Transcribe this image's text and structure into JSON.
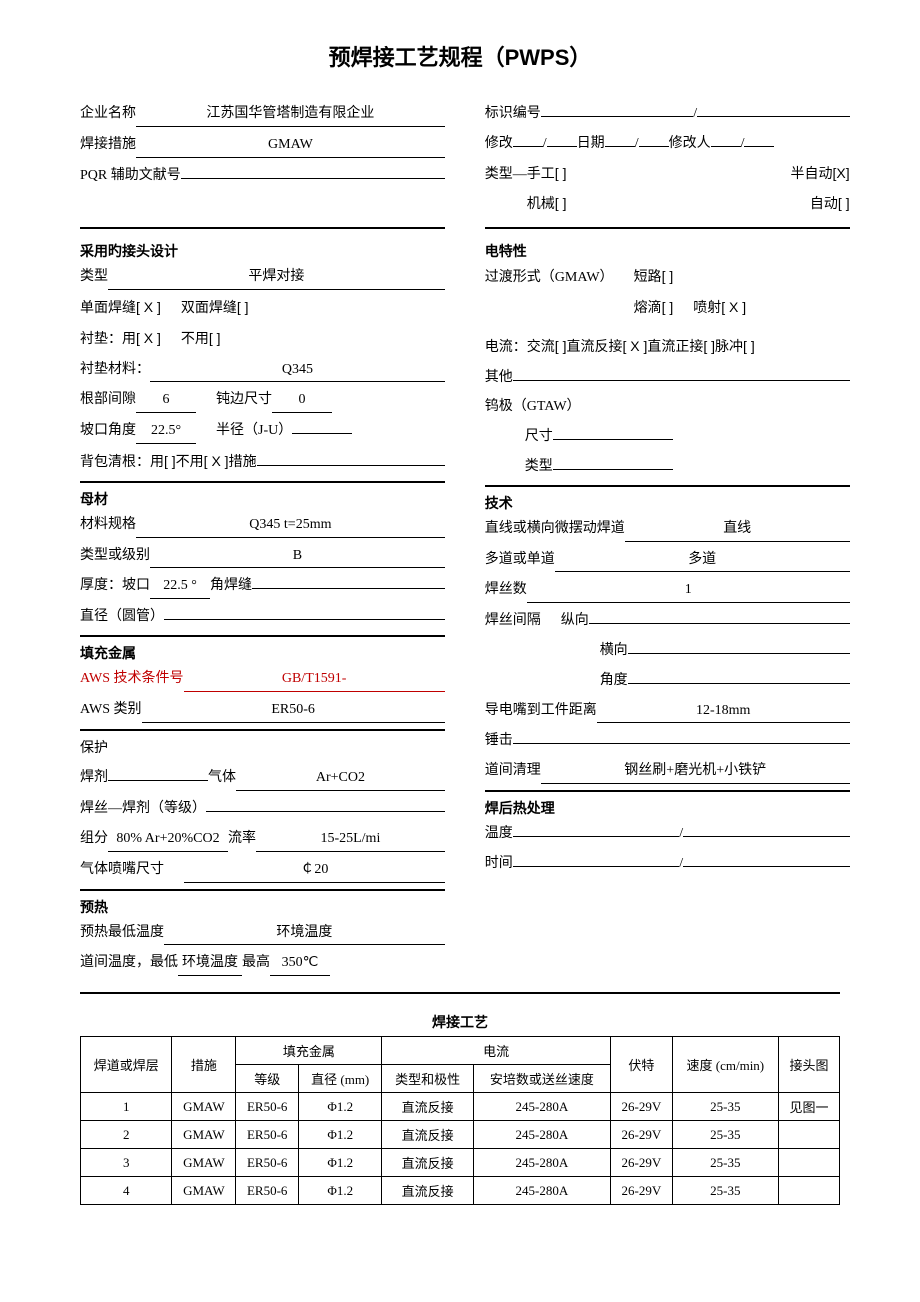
{
  "title": "预焊接工艺规程（PWPS）",
  "header": {
    "company_label": "企业名称",
    "company_value": "江苏国华管塔制造有限企业",
    "method_label": "焊接措施",
    "method_value": "GMAW",
    "pqr_label": "PQR 辅助文献号",
    "pqr_value": "",
    "id_label": "标识编号",
    "id_value1": "",
    "id_value2": "",
    "rev_label": "修改",
    "rev_date_label": "日期",
    "rev_person_label": "修改人",
    "type_label": "类型",
    "type_manual": "手工",
    "type_semi": "半自动",
    "type_mech": "机械",
    "type_auto": "自动",
    "type_manual_mark": "[   ]",
    "type_semi_mark": "[X]",
    "type_mech_mark": "[   ]",
    "type_auto_mark": "[   ]"
  },
  "joint": {
    "section": "采用旳接头设计",
    "type_label": "类型",
    "type_value": "平焊对接",
    "single_label": "单面焊缝",
    "single_mark": "[ X ]",
    "double_label": "双面焊缝",
    "double_mark": "[   ]",
    "backing_label": "衬垫：",
    "backing_use": "用",
    "backing_use_mark": "[ X ]",
    "backing_nouse": "不用",
    "backing_nouse_mark": "[   ]",
    "backing_mat_label": "衬垫材料：",
    "backing_mat_value": "Q345",
    "root_gap_label": "根部间隙",
    "root_gap_value": "6",
    "blunt_label": "钝边尺寸",
    "blunt_value": "0",
    "groove_label": "坡口角度",
    "groove_value": "22.5°",
    "radius_label": "半径（J-U）",
    "radius_value": "",
    "backclean_label": "背包清根：",
    "backclean_use": "用",
    "backclean_use_mark": "[   ]",
    "backclean_nouse": "不用",
    "backclean_nouse_mark": "[ X ]",
    "backclean_method": "措施",
    "backclean_method_value": ""
  },
  "base": {
    "section": "母材",
    "spec_label": "材料规格",
    "spec_value": "Q345    t=25mm",
    "type_label": "类型或级别",
    "type_value": "B",
    "thick_label": "厚度：坡口",
    "thick_value": "22.5 °",
    "fillet_label": "角焊缝",
    "fillet_value": "",
    "dia_label": "直径（圆管）",
    "dia_value": ""
  },
  "filler": {
    "section": "填充金属",
    "aws_cond_label": "AWS 技术条件号",
    "aws_cond_value": "GB/T1591-",
    "aws_class_label": "AWS 类别",
    "aws_class_value": "ER50-6",
    "shield_label": "保护",
    "flux_label": "焊剂",
    "flux_value": "",
    "gas_label": "气体",
    "gas_value": "Ar+CO2",
    "wireflux_label": "焊丝—焊剂（等级）",
    "wireflux_value": "",
    "comp_label": "组分",
    "comp_value": "80% Ar+20%CO2",
    "flow_label": "流率",
    "flow_value": "15-25L/mi",
    "nozzle_label": "气体喷嘴尺寸",
    "nozzle_value": "￠20"
  },
  "preheat": {
    "section": "预热",
    "min_label": "预热最低温度",
    "min_value": "环境温度",
    "inter_label": "道间温度，最低",
    "inter_value": "环境温度",
    "max_label": "最高",
    "max_value": "350℃"
  },
  "elec": {
    "section": "电特性",
    "transfer_label": "过渡形式（GMAW）",
    "short_label": "短路",
    "short_mark": "[   ]",
    "drop_label": "熔滴",
    "drop_mark": "[   ]",
    "spray_label": "喷射",
    "spray_mark": "[ X ]",
    "current_label": "电流：",
    "ac_label": "交流",
    "ac_mark": "[   ]",
    "dcr_label": "直流反接",
    "dcr_mark": "[ X ]",
    "dcp_label": "直流正接",
    "dcp_mark": "[   ]",
    "pulse_label": "脉冲",
    "pulse_mark": "[   ]",
    "other_label": "其他",
    "other_value": "",
    "tungsten_label": "钨极（GTAW）",
    "t_size_label": "尺寸",
    "t_size_value": "",
    "t_type_label": "类型",
    "t_type_value": ""
  },
  "tech": {
    "section": "技术",
    "weave_label": "直线或横向微摆动焊道",
    "weave_value": "直线",
    "multi_label": "多道或单道",
    "multi_value": "多道",
    "wires_label": "焊丝数",
    "wires_value": "1",
    "spacing_label": "焊丝间隔",
    "spacing_long": "纵向",
    "spacing_long_value": "",
    "spacing_trans": "横向",
    "spacing_trans_value": "",
    "angle_label": "角度",
    "angle_value": "",
    "ctw_label": "导电嘴到工件距离",
    "ctw_value": "12-18mm",
    "peen_label": "锤击",
    "peen_value": "",
    "clean_label": "道间清理",
    "clean_value": "钢丝刷+磨光机+小铁铲"
  },
  "pwht": {
    "section": "焊后热处理",
    "temp_label": "温度",
    "time_label": "时间"
  },
  "proc": {
    "title": "焊接工艺",
    "columns": {
      "pass": "焊道或焊层",
      "method": "措施",
      "filler": "填充金属",
      "grade": "等级",
      "dia": "直径 (mm)",
      "current": "电流",
      "polarity": "类型和极性",
      "amp": "安培数或送丝速度",
      "volt": "伏特",
      "speed": "速度 (cm/min)",
      "joint": "接头图"
    },
    "rows": [
      {
        "pass": "1",
        "method": "GMAW",
        "grade": "ER50-6",
        "dia": "Φ1.2",
        "polarity": "直流反接",
        "amp": "245-280A",
        "volt": "26-29V",
        "speed": "25-35",
        "joint": "见图一"
      },
      {
        "pass": "2",
        "method": "GMAW",
        "grade": "ER50-6",
        "dia": "Φ1.2",
        "polarity": "直流反接",
        "amp": "245-280A",
        "volt": "26-29V",
        "speed": "25-35",
        "joint": ""
      },
      {
        "pass": "3",
        "method": "GMAW",
        "grade": "ER50-6",
        "dia": "Φ1.2",
        "polarity": "直流反接",
        "amp": "245-280A",
        "volt": "26-29V",
        "speed": "25-35",
        "joint": ""
      },
      {
        "pass": "4",
        "method": "GMAW",
        "grade": "ER50-6",
        "dia": "Φ1.2",
        "polarity": "直流反接",
        "amp": "245-280A",
        "volt": "26-29V",
        "speed": "25-35",
        "joint": ""
      }
    ]
  }
}
